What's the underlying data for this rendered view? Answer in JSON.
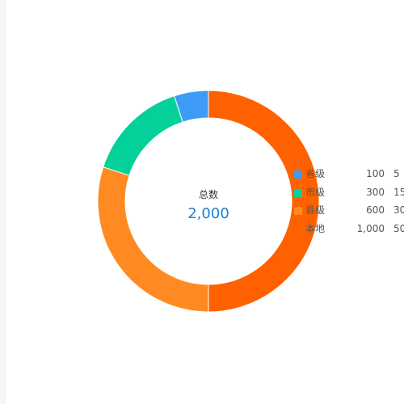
{
  "chart_data": {
    "type": "pie",
    "style": "donut",
    "center": {
      "label": "总数",
      "value": "2,000"
    },
    "slices": [
      {
        "name": "省级",
        "value": 100,
        "value_label": "100",
        "percent": "5",
        "color": "#3e9bf5"
      },
      {
        "name": "市级",
        "value": 300,
        "value_label": "300",
        "percent": "15",
        "color": "#04d19a"
      },
      {
        "name": "县级",
        "value": 600,
        "value_label": "600",
        "percent": "30",
        "color": "#ff8a22"
      },
      {
        "name": "本地",
        "value": 1000,
        "value_label": "1,000",
        "percent": "50",
        "color": "#ff6100"
      }
    ],
    "legend_position": "right"
  }
}
